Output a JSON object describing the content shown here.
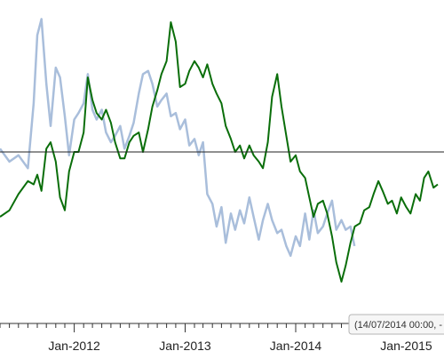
{
  "chart_data": {
    "type": "line",
    "x_tick_labels": [
      "Jan-2012",
      "Jan-2013",
      "Jan-2014",
      "Jan-2015"
    ],
    "reference_line": {
      "y": 0
    },
    "tooltip": {
      "text": "(14/07/2014 00:00, -"
    },
    "colors": {
      "green": "#0a6e0a",
      "blue": "#a9bedb",
      "axis": "#333333",
      "reference": "#222222"
    },
    "series": [
      {
        "color_key": "blue",
        "x": [
          "2011-05-01",
          "2011-06-01",
          "2011-07-01",
          "2011-08-01",
          "2011-08-20",
          "2011-09-01",
          "2011-09-15",
          "2011-10-01",
          "2011-10-15",
          "2011-11-01",
          "2011-11-15",
          "2011-12-01",
          "2011-12-15",
          "2012-01-01",
          "2012-01-15",
          "2012-02-01",
          "2012-02-15",
          "2012-03-01",
          "2012-03-15",
          "2012-04-01",
          "2012-04-15",
          "2012-05-01",
          "2012-05-15",
          "2012-06-01",
          "2012-06-15",
          "2012-07-01",
          "2012-07-15",
          "2012-08-01",
          "2012-08-15",
          "2012-09-01",
          "2012-09-15",
          "2012-10-01",
          "2012-10-15",
          "2012-11-01",
          "2012-11-15",
          "2012-12-01",
          "2012-12-15",
          "2013-01-01",
          "2013-01-15",
          "2013-02-01",
          "2013-02-15",
          "2013-03-01",
          "2013-03-15",
          "2013-04-01",
          "2013-04-15",
          "2013-05-01",
          "2013-05-15",
          "2013-06-01",
          "2013-06-15",
          "2013-07-01",
          "2013-07-15",
          "2013-08-01",
          "2013-08-15",
          "2013-09-01",
          "2013-09-15",
          "2013-10-01",
          "2013-10-15",
          "2013-11-01",
          "2013-11-15",
          "2013-12-01",
          "2013-12-15",
          "2014-01-01",
          "2014-01-15",
          "2014-02-01",
          "2014-02-15",
          "2014-03-01",
          "2014-03-15",
          "2014-04-01",
          "2014-04-15",
          "2014-05-01",
          "2014-05-15",
          "2014-06-01",
          "2014-06-15",
          "2014-07-01",
          "2014-07-14"
        ],
        "y": [
          0.1,
          -0.3,
          -0.1,
          -0.5,
          1.5,
          3.6,
          4.1,
          2.1,
          0.8,
          2.6,
          2.3,
          1.1,
          -0.1,
          1.0,
          1.2,
          1.5,
          2.4,
          1.3,
          1.0,
          1.3,
          0.6,
          0.3,
          0.5,
          0.8,
          0.1,
          0.5,
          0.9,
          1.8,
          2.4,
          2.5,
          2.1,
          1.4,
          1.6,
          1.8,
          1.1,
          1.2,
          0.7,
          1.0,
          0.2,
          0.4,
          -0.1,
          0.3,
          -1.3,
          -1.6,
          -2.3,
          -1.7,
          -2.8,
          -1.9,
          -2.4,
          -1.8,
          -2.2,
          -1.4,
          -2.0,
          -2.7,
          -2.1,
          -1.6,
          -2.1,
          -2.5,
          -2.4,
          -2.9,
          -3.2,
          -2.6,
          -2.9,
          -1.9,
          -2.7,
          -1.8,
          -2.5,
          -2.3,
          -1.9,
          -1.5,
          -2.4,
          -2.1,
          -2.4,
          -2.3,
          -2.9
        ]
      },
      {
        "color_key": "green",
        "x": [
          "2011-05-01",
          "2011-06-01",
          "2011-07-01",
          "2011-08-01",
          "2011-08-20",
          "2011-09-01",
          "2011-09-15",
          "2011-10-01",
          "2011-10-15",
          "2011-11-01",
          "2011-11-15",
          "2011-12-01",
          "2011-12-15",
          "2012-01-01",
          "2012-01-15",
          "2012-02-01",
          "2012-02-15",
          "2012-03-01",
          "2012-03-15",
          "2012-04-01",
          "2012-04-15",
          "2012-05-01",
          "2012-05-15",
          "2012-06-01",
          "2012-06-15",
          "2012-07-01",
          "2012-07-15",
          "2012-08-01",
          "2012-08-15",
          "2012-09-01",
          "2012-09-15",
          "2012-10-01",
          "2012-10-15",
          "2012-11-01",
          "2012-11-15",
          "2012-12-01",
          "2012-12-15",
          "2013-01-01",
          "2013-01-15",
          "2013-02-01",
          "2013-02-15",
          "2013-03-01",
          "2013-03-15",
          "2013-04-01",
          "2013-04-15",
          "2013-05-01",
          "2013-05-15",
          "2013-06-01",
          "2013-06-15",
          "2013-07-01",
          "2013-07-15",
          "2013-08-01",
          "2013-08-15",
          "2013-09-01",
          "2013-09-15",
          "2013-10-01",
          "2013-10-15",
          "2013-11-01",
          "2013-11-15",
          "2013-12-01",
          "2013-12-15",
          "2014-01-01",
          "2014-01-15",
          "2014-02-01",
          "2014-02-15",
          "2014-03-01",
          "2014-03-15",
          "2014-04-01",
          "2014-04-15",
          "2014-05-01",
          "2014-05-15",
          "2014-06-01",
          "2014-06-15",
          "2014-07-01",
          "2014-07-15",
          "2014-08-01",
          "2014-08-15",
          "2014-09-01",
          "2014-09-15",
          "2014-10-01",
          "2014-10-15",
          "2014-11-01",
          "2014-11-15",
          "2014-12-01",
          "2014-12-15",
          "2015-01-01",
          "2015-01-15",
          "2015-02-01",
          "2015-02-15",
          "2015-03-01",
          "2015-03-15",
          "2015-04-01",
          "2015-04-15"
        ],
        "y": [
          -2.0,
          -1.8,
          -1.3,
          -0.9,
          -1.0,
          -0.7,
          -1.2,
          0.1,
          0.3,
          -0.3,
          -1.4,
          -1.8,
          -0.6,
          0.0,
          0.0,
          0.6,
          2.3,
          1.6,
          1.2,
          1.0,
          1.3,
          0.9,
          0.3,
          -0.2,
          -0.2,
          0.3,
          0.5,
          0.6,
          0.0,
          0.7,
          1.4,
          1.9,
          2.4,
          2.8,
          4.0,
          3.4,
          2.0,
          2.1,
          2.5,
          2.8,
          2.6,
          2.3,
          2.7,
          2.1,
          1.8,
          1.5,
          0.8,
          0.4,
          0.0,
          0.2,
          -0.2,
          0.2,
          -0.1,
          -0.3,
          -0.5,
          0.3,
          1.7,
          2.4,
          1.4,
          0.5,
          -0.3,
          -0.1,
          -0.6,
          -0.8,
          -1.4,
          -2.0,
          -1.6,
          -1.5,
          -1.9,
          -2.6,
          -3.4,
          -4.0,
          -3.5,
          -2.8,
          -2.3,
          -2.2,
          -1.8,
          -1.7,
          -1.3,
          -0.9,
          -1.2,
          -1.6,
          -1.5,
          -1.9,
          -1.4,
          -1.7,
          -1.9,
          -1.3,
          -1.5,
          -0.8,
          -0.6,
          -1.1,
          -1.0
        ]
      }
    ]
  }
}
